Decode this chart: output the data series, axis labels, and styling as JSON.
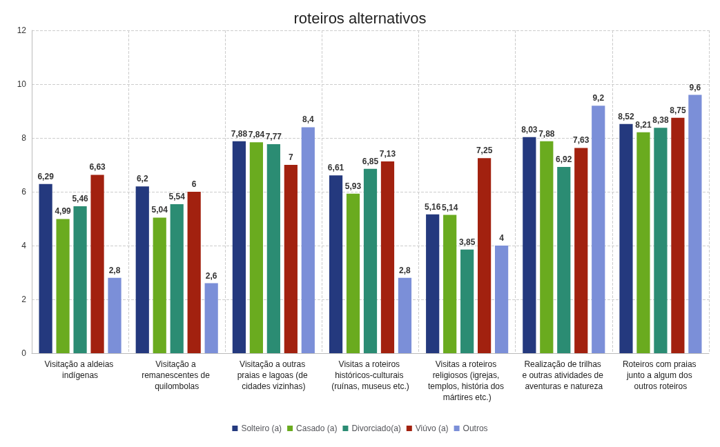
{
  "chart_data": {
    "type": "bar",
    "title": "roteiros alternativos",
    "categories": [
      "Visitação a aldeias indígenas",
      "Visitação a remanescentes de quilombolas",
      "Visitação a outras praias e lagoas (de cidades vizinhas)",
      "Visitas a roteiros históricos-culturais (ruínas, museus etc.)",
      "Visitas a roteiros religiosos (igrejas, templos, história dos mártires etc.)",
      "Realização de trilhas e outras atividades de aventuras e natureza",
      "Roteiros com praias junto a algum dos outros roteiros"
    ],
    "series": [
      {
        "name": "Solteiro (a)",
        "color": "#24397e",
        "values": [
          6.29,
          6.2,
          7.88,
          6.61,
          5.16,
          8.03,
          8.52
        ],
        "value_labels": [
          "6,29",
          "6,2",
          "7,88",
          "6,61",
          "5,16",
          "8,03",
          "8,52"
        ]
      },
      {
        "name": "Casado (a)",
        "color": "#6aab1f",
        "values": [
          4.99,
          5.04,
          7.84,
          5.93,
          5.14,
          7.88,
          8.21
        ],
        "value_labels": [
          "4,99",
          "5,04",
          "7,84",
          "5,93",
          "5,14",
          "7,88",
          "8,21"
        ]
      },
      {
        "name": "Divorciado(a)",
        "color": "#2b8c73",
        "values": [
          5.46,
          5.54,
          7.77,
          6.85,
          3.85,
          6.92,
          8.38
        ],
        "value_labels": [
          "5,46",
          "5,54",
          "7,77",
          "6,85",
          "3,85",
          "6,92",
          "8,38"
        ]
      },
      {
        "name": "Viúvo (a)",
        "color": "#a2210f",
        "values": [
          6.63,
          6,
          7,
          7.13,
          7.25,
          7.63,
          8.75
        ],
        "value_labels": [
          "6,63",
          "6",
          "7",
          "7,13",
          "7,25",
          "7,63",
          "8,75"
        ]
      },
      {
        "name": "Outros",
        "color": "#7b8fd8",
        "values": [
          2.8,
          2.6,
          8.4,
          2.8,
          4,
          9.2,
          9.6
        ],
        "value_labels": [
          "2,8",
          "2,6",
          "8,4",
          "2,8",
          "4",
          "9,2",
          "9,6"
        ]
      }
    ],
    "ylim": [
      0,
      12
    ],
    "yticks": [
      0,
      2,
      4,
      6,
      8,
      10,
      12
    ],
    "grid": true,
    "legend": "bottom"
  }
}
